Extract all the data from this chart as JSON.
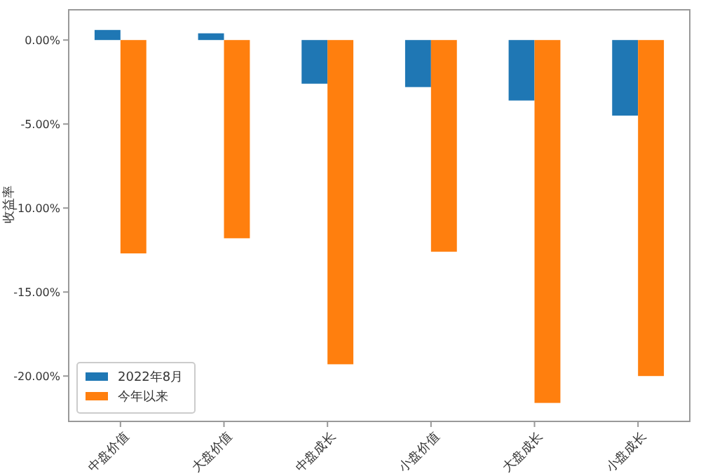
{
  "chart_data": {
    "type": "bar",
    "ylabel": "收益率",
    "categories": [
      "中盘价值",
      "大盘价值",
      "中盘成长",
      "小盘价值",
      "大盘成长",
      "小盘成长"
    ],
    "series": [
      {
        "name": "2022年8月",
        "color": "#1f77b4",
        "values": [
          0.6,
          0.4,
          -2.6,
          -2.8,
          -3.6,
          -4.5
        ]
      },
      {
        "name": "今年以来",
        "color": "#ff7f0e",
        "values": [
          -12.7,
          -11.8,
          -19.3,
          -12.6,
          -21.6,
          -20.0
        ]
      }
    ],
    "ylim": [
      -22.7,
      1.8
    ],
    "yticks": [
      {
        "value": 0,
        "label": "0.00%"
      },
      {
        "value": -5,
        "label": "-5.00%"
      },
      {
        "value": -10,
        "label": "-10.00%"
      },
      {
        "value": -15,
        "label": "-15.00%"
      },
      {
        "value": -20,
        "label": "-20.00%"
      }
    ],
    "legend": "bottom left"
  }
}
